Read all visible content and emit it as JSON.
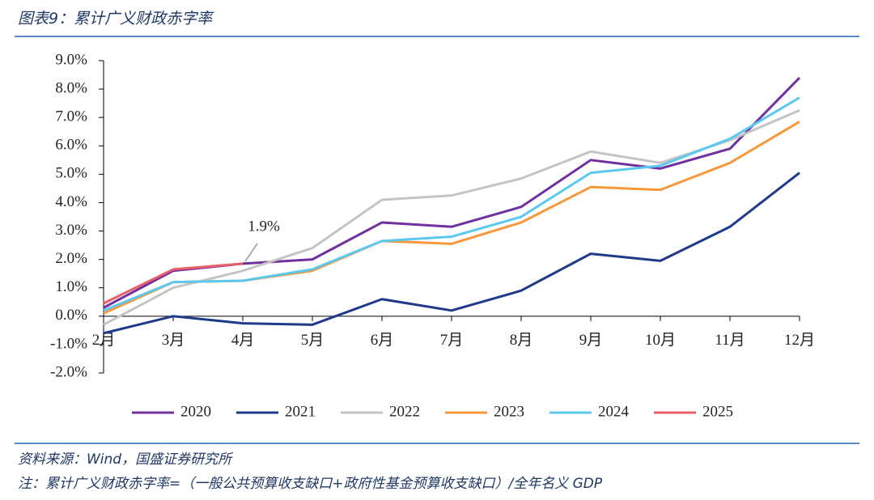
{
  "header": {
    "title": "图表9：累计广义财政赤字率"
  },
  "chart_data": {
    "type": "line",
    "categories": [
      "2月",
      "3月",
      "4月",
      "5月",
      "6月",
      "7月",
      "8月",
      "9月",
      "10月",
      "11月",
      "12月"
    ],
    "series": [
      {
        "name": "2020",
        "color": "#7030a0",
        "values": [
          0.3,
          1.6,
          1.85,
          2.0,
          3.3,
          3.15,
          3.85,
          5.5,
          5.2,
          5.9,
          8.4
        ]
      },
      {
        "name": "2021",
        "color": "#1f3a8a",
        "values": [
          -0.6,
          0.0,
          -0.25,
          -0.3,
          0.6,
          0.2,
          0.9,
          2.2,
          1.95,
          3.15,
          5.05
        ]
      },
      {
        "name": "2022",
        "color": "#c4c4c4",
        "values": [
          -0.3,
          1.0,
          1.6,
          2.4,
          4.1,
          4.25,
          4.85,
          5.8,
          5.4,
          6.2,
          7.25
        ]
      },
      {
        "name": "2023",
        "color": "#f7993b",
        "values": [
          0.1,
          1.2,
          1.25,
          1.6,
          2.65,
          2.55,
          3.3,
          4.55,
          4.45,
          5.4,
          6.85
        ]
      },
      {
        "name": "2024",
        "color": "#5bc8ef",
        "values": [
          0.2,
          1.2,
          1.25,
          1.65,
          2.65,
          2.8,
          3.5,
          5.05,
          5.3,
          6.25,
          7.7
        ]
      },
      {
        "name": "2025",
        "color": "#e8606a",
        "values": [
          0.45,
          1.65,
          1.85,
          null,
          null,
          null,
          null,
          null,
          null,
          null,
          null
        ]
      }
    ],
    "ylim": [
      -2,
      9
    ],
    "yticks": [
      {
        "value": -2,
        "label": "-2.0%"
      },
      {
        "value": -1,
        "label": "-1.0%"
      },
      {
        "value": 0,
        "label": "0.0%"
      },
      {
        "value": 1,
        "label": "1.0%"
      },
      {
        "value": 2,
        "label": "2.0%"
      },
      {
        "value": 3,
        "label": "3.0%"
      },
      {
        "value": 4,
        "label": "4.0%"
      },
      {
        "value": 5,
        "label": "5.0%"
      },
      {
        "value": 6,
        "label": "6.0%"
      },
      {
        "value": 7,
        "label": "7.0%"
      },
      {
        "value": 8,
        "label": "8.0%"
      },
      {
        "value": 9,
        "label": "9.0%"
      }
    ],
    "annotation": "1.9%",
    "legend": "bottom"
  },
  "footer": {
    "source": "资料来源：Wind，国盛证券研究所",
    "note": "注：累计广义财政赤字率=（一般公共预算收支缺口+政府性基金预算收支缺口）/全年名义 GDP"
  }
}
